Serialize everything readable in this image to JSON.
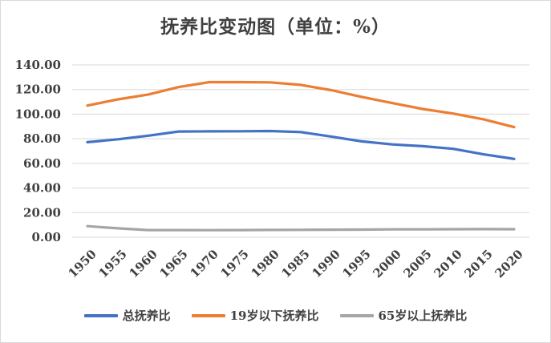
{
  "chart_data": {
    "type": "line",
    "title": "抚养比变动图（单位：%）",
    "xlabel": "",
    "ylabel": "",
    "x": [
      "1950",
      "1955",
      "1960",
      "1965",
      "1970",
      "1975",
      "1980",
      "1985",
      "1990",
      "1995",
      "2000",
      "2005",
      "2010",
      "2015",
      "2020"
    ],
    "ylim": [
      0,
      140
    ],
    "yticks": [
      "0.00",
      "20.00",
      "40.00",
      "60.00",
      "80.00",
      "100.00",
      "120.00",
      "140.00"
    ],
    "grid": true,
    "legend_position": "bottom",
    "series": [
      {
        "name": "总抚养比",
        "color": "#4472c4",
        "values": [
          77.2,
          79.6,
          82.5,
          85.9,
          86.0,
          86.1,
          86.3,
          85.4,
          81.8,
          77.9,
          75.4,
          74.0,
          71.8,
          67.3,
          63.6
        ]
      },
      {
        "name": "19岁以下抚养比",
        "color": "#ed7d31",
        "values": [
          107.0,
          112.0,
          116.0,
          122.0,
          126.0,
          126.0,
          125.8,
          123.8,
          119.5,
          114.0,
          109.0,
          104.2,
          100.5,
          95.8,
          89.5
        ]
      },
      {
        "name": "65岁以上抚养比",
        "color": "#a5a5a5",
        "values": [
          9.0,
          7.2,
          5.8,
          5.8,
          5.7,
          5.8,
          5.9,
          6.0,
          6.1,
          6.2,
          6.4,
          6.4,
          6.5,
          6.6,
          6.5
        ]
      }
    ]
  }
}
